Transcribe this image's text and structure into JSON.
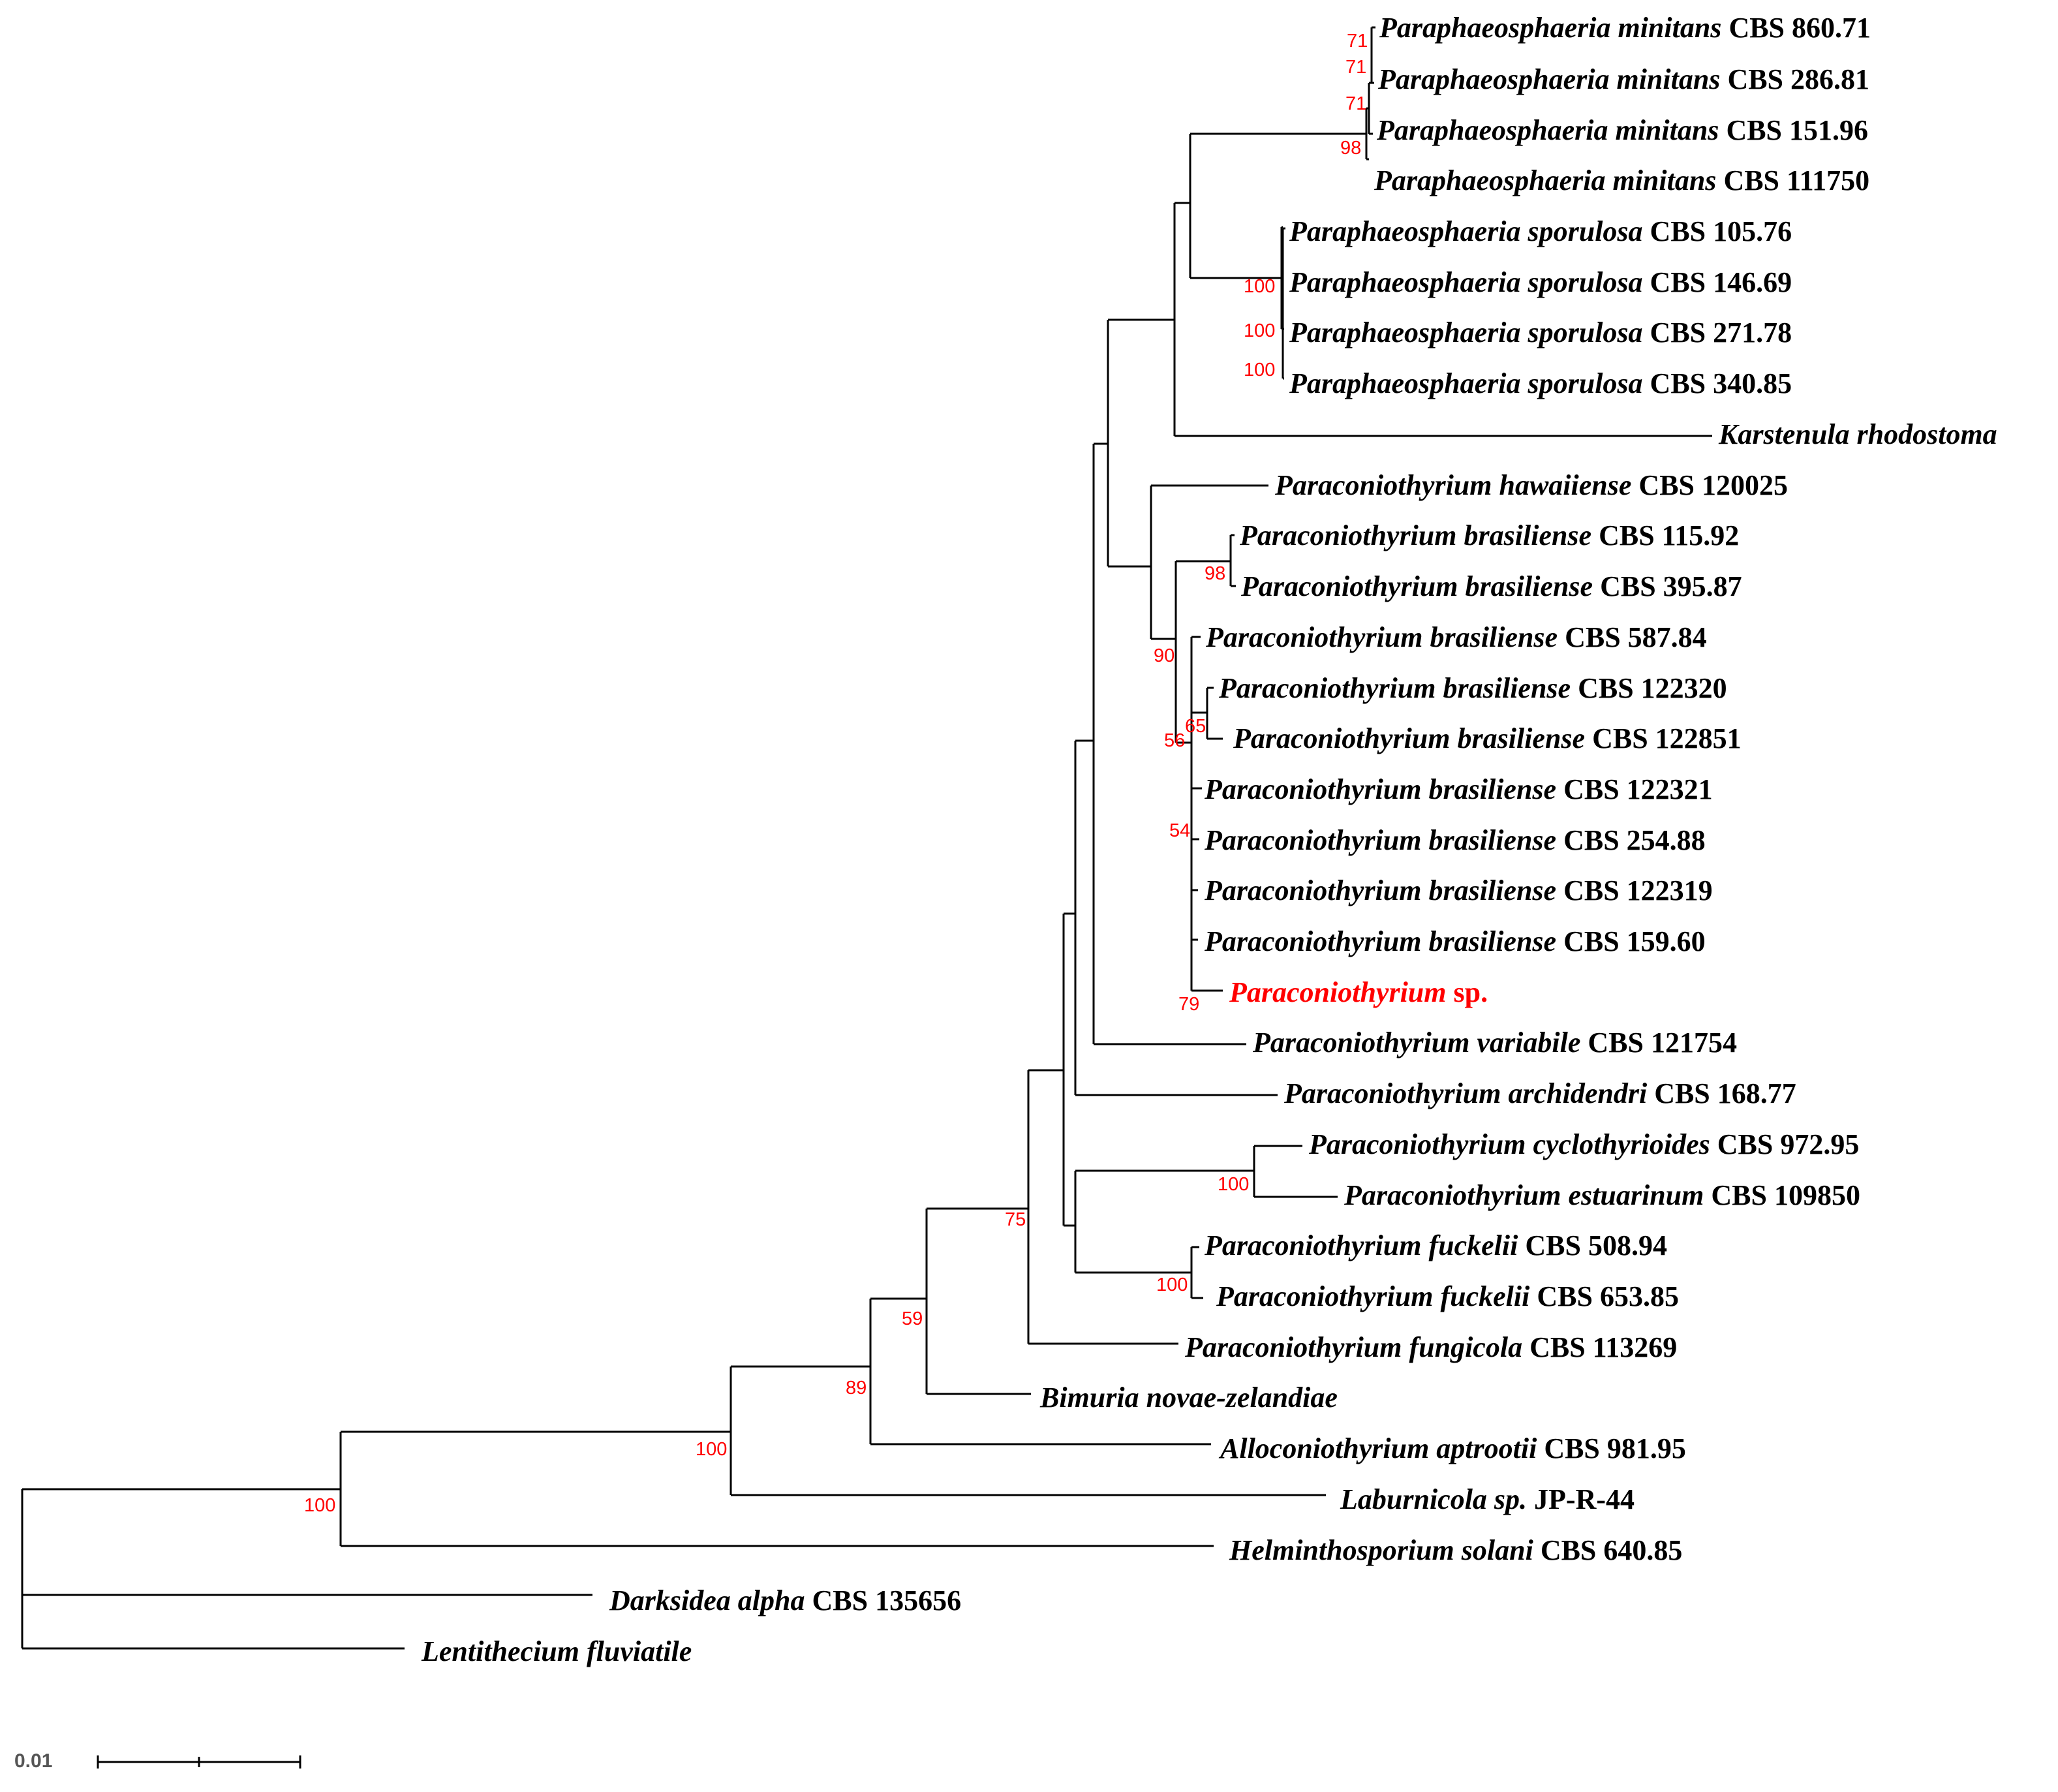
{
  "figure": {
    "type": "phylogenetic tree",
    "scale_label": "0.01",
    "label_color": "#000000",
    "highlight_color": "#ff0000",
    "support_color": "#ff0000"
  },
  "taxa": [
    {
      "genus_species": "Paraphaeosphaeria minitans",
      "strain": "CBS 860.71",
      "highlight": false
    },
    {
      "genus_species": "Paraphaeosphaeria minitans",
      "strain": "CBS 286.81",
      "highlight": false
    },
    {
      "genus_species": "Paraphaeosphaeria minitans",
      "strain": "CBS 151.96",
      "highlight": false
    },
    {
      "genus_species": "Paraphaeosphaeria minitans",
      "strain": "CBS 111750",
      "highlight": false
    },
    {
      "genus_species": "Paraphaeosphaeria sporulosa",
      "strain": "CBS 105.76",
      "highlight": false
    },
    {
      "genus_species": "Paraphaeosphaeria sporulosa",
      "strain": "CBS 146.69",
      "highlight": false
    },
    {
      "genus_species": "Paraphaeosphaeria sporulosa",
      "strain": "CBS 271.78",
      "highlight": false
    },
    {
      "genus_species": "Paraphaeosphaeria sporulosa",
      "strain": "CBS 340.85",
      "highlight": false
    },
    {
      "genus_species": "Karstenula rhodostoma",
      "strain": "",
      "highlight": false
    },
    {
      "genus_species": "Paraconiothyrium hawaiiense",
      "strain": "CBS 120025",
      "highlight": false
    },
    {
      "genus_species": "Paraconiothyrium brasiliense",
      "strain": "CBS 115.92",
      "highlight": false
    },
    {
      "genus_species": "Paraconiothyrium brasiliense",
      "strain": "CBS 395.87",
      "highlight": false
    },
    {
      "genus_species": "Paraconiothyrium brasiliense",
      "strain": "CBS 587.84",
      "highlight": false
    },
    {
      "genus_species": "Paraconiothyrium brasiliense",
      "strain": "CBS 122320",
      "highlight": false
    },
    {
      "genus_species": "Paraconiothyrium brasiliense",
      "strain": "CBS 122851",
      "highlight": false
    },
    {
      "genus_species": "Paraconiothyrium brasiliense",
      "strain": "CBS 122321",
      "highlight": false
    },
    {
      "genus_species": "Paraconiothyrium brasiliense",
      "strain": "CBS 254.88",
      "highlight": false
    },
    {
      "genus_species": "Paraconiothyrium brasiliense",
      "strain": "CBS 122319",
      "highlight": false
    },
    {
      "genus_species": "Paraconiothyrium brasiliense",
      "strain": "CBS 159.60",
      "highlight": false
    },
    {
      "genus_species": "Paraconiothyrium",
      "strain": "sp.",
      "highlight": true
    },
    {
      "genus_species": "Paraconiothyrium variabile",
      "strain": "CBS 121754",
      "highlight": false
    },
    {
      "genus_species": "Paraconiothyrium archidendri",
      "strain": "CBS 168.77",
      "highlight": false
    },
    {
      "genus_species": "Paraconiothyrium cyclothyrioides",
      "strain": "CBS 972.95",
      "highlight": false
    },
    {
      "genus_species": "Paraconiothyrium estuarinum",
      "strain": "CBS 109850",
      "highlight": false
    },
    {
      "genus_species": "Paraconiothyrium fuckelii",
      "strain": "CBS 508.94",
      "highlight": false
    },
    {
      "genus_species": "Paraconiothyrium fuckelii",
      "strain": "CBS 653.85",
      "highlight": false
    },
    {
      "genus_species": "Paraconiothyrium fungicola",
      "strain": "CBS 113269",
      "highlight": false
    },
    {
      "genus_species": "Bimuria novae-zelandiae",
      "strain": "",
      "highlight": false
    },
    {
      "genus_species": "Alloconiothyrium aptrootii",
      "strain": "CBS 981.95",
      "highlight": false
    },
    {
      "genus_species": "Laburnicola sp.",
      "strain": "JP-R-44",
      "highlight": false
    },
    {
      "genus_species": "Helminthosporium solani",
      "strain": "CBS 640.85",
      "highlight": false
    },
    {
      "genus_species": "Darksidea alpha",
      "strain": "CBS 135656",
      "highlight": false
    },
    {
      "genus_species": "Lentithecium fluviatile",
      "strain": "",
      "highlight": false
    }
  ],
  "support_values": [
    "71",
    "71",
    "71",
    "98",
    "100",
    "100",
    "100",
    "98",
    "90",
    "65",
    "56",
    "54",
    "79",
    "100",
    "100",
    "75",
    "59",
    "89",
    "100",
    "100"
  ]
}
